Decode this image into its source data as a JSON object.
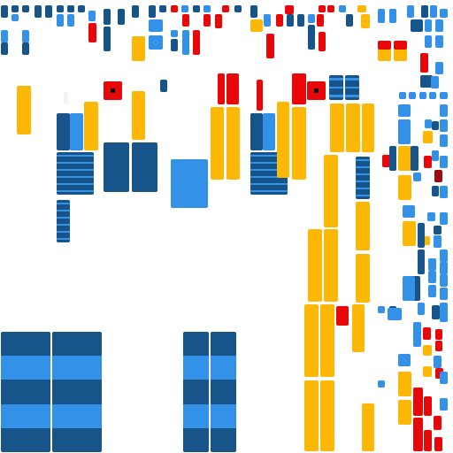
{
  "palette": {
    "navy": "#17548a",
    "blue": "#3391e8",
    "yellow": "#fdb705",
    "red": "#e80709",
    "darkred": "#9b0b12",
    "black": "#000000",
    "faint": "#f3f3f3"
  },
  "shapes": [
    {
      "kind": "square",
      "fill": "red",
      "marker": true
    },
    {
      "kind": "square",
      "fill": "red",
      "marker": true
    },
    {
      "kind": "striped-block",
      "fill": "navy",
      "stripe": "blue"
    },
    {
      "kind": "striped-block",
      "fill": "navy",
      "stripe": "blue"
    },
    {
      "kind": "striped-block",
      "fill": "navy",
      "stripe": "blue"
    },
    {
      "kind": "striped-block",
      "fill": "navy",
      "stripe": "blue"
    }
  ]
}
